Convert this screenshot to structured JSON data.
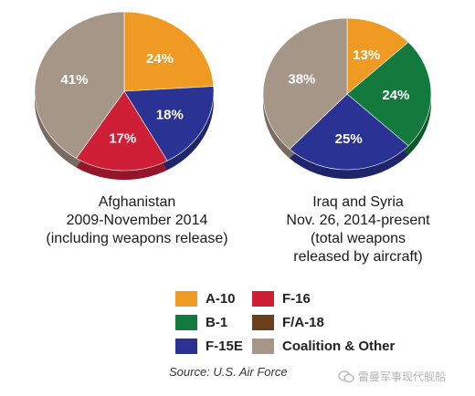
{
  "chart_data": [
    {
      "type": "pie",
      "categories": [
        "A-10",
        "F-15E",
        "F-16",
        "Coalition & Other"
      ],
      "values": [
        24,
        18,
        17,
        41
      ],
      "labels": [
        "24%",
        "18%",
        "17%",
        "41%"
      ],
      "title_lines": [
        "Afghanistan",
        "2009-November 2014",
        "(including weapons release)"
      ]
    },
    {
      "type": "pie",
      "categories": [
        "A-10",
        "B-1",
        "F-15E",
        "Coalition & Other"
      ],
      "values": [
        13,
        24,
        25,
        38
      ],
      "labels": [
        "13%",
        "24%",
        "25%",
        "38%"
      ],
      "title_lines": [
        "Iraq and Syria",
        "Nov. 26, 2014-present",
        "(total weapons",
        "released by aircraft)"
      ]
    }
  ],
  "colors": {
    "A-10": "#ef9a22",
    "F-16": "#cf1f37",
    "B-1": "#127a3c",
    "F/A-18": "#6b3e1c",
    "F-15E": "#2a3393",
    "Coalition & Other": "#a69688"
  },
  "legend": [
    {
      "label": "A-10"
    },
    {
      "label": "F-16"
    },
    {
      "label": "B-1"
    },
    {
      "label": "F/A-18"
    },
    {
      "label": "F-15E"
    },
    {
      "label": "Coalition & Other"
    }
  ],
  "source": "Source: U.S. Air Force",
  "watermark": "雷曼军事现代舰船"
}
